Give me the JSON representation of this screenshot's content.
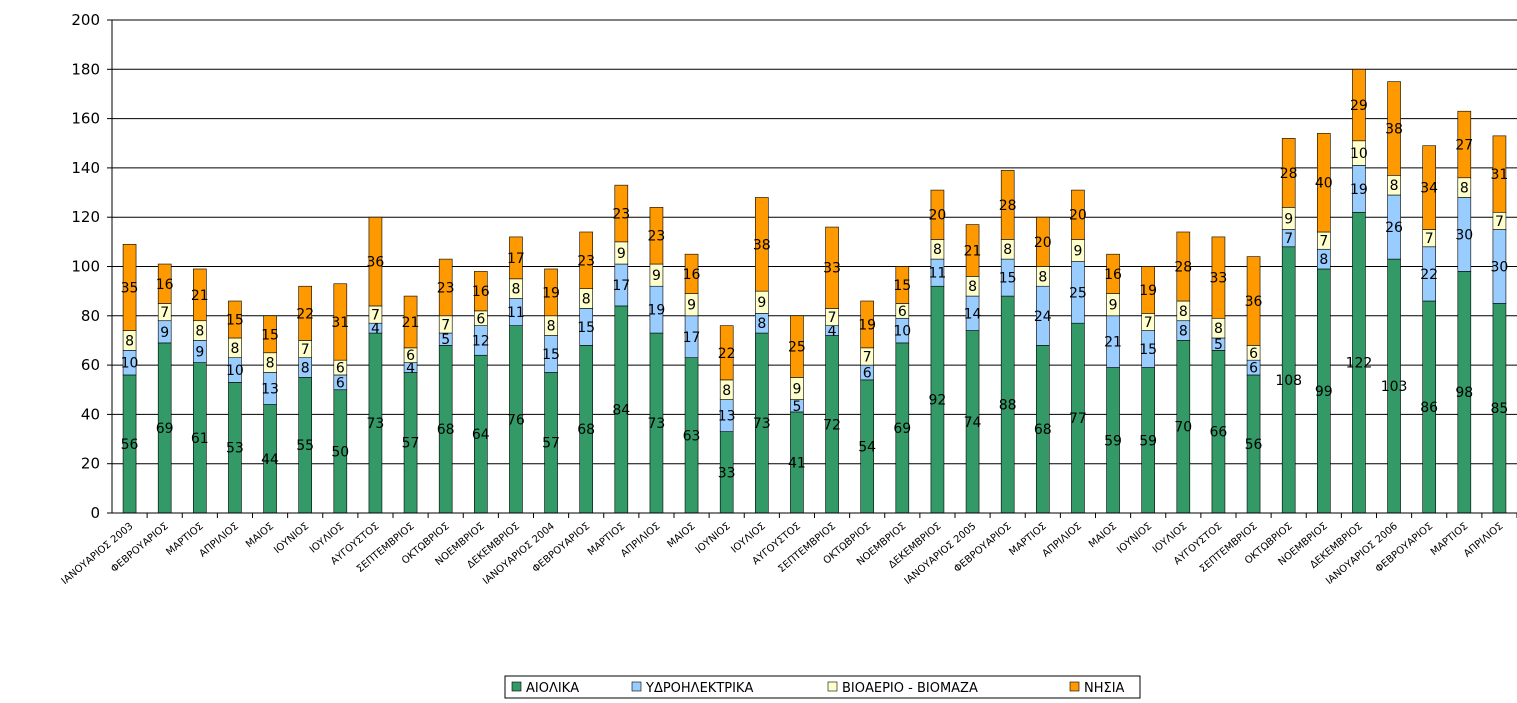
{
  "chart_data": {
    "type": "stacked_bar",
    "categories": [
      "ΙΑΝΟΥΑΡΙΟΣ 2003",
      "ΦΕΒΡΟΥΑΡΙΟΣ",
      "ΜΑΡΤΙΟΣ",
      "ΑΠΡΙΛΙΟΣ",
      "ΜΑΙΟΣ",
      "ΙΟΥΝΙΟΣ",
      "ΙΟΥΛΙΟΣ",
      "ΑΥΓΟΥΣΤΟΣ",
      "ΣΕΠΤΕΜΒΡΙΟΣ",
      "ΟΚΤΩΒΡΙΟΣ",
      "ΝΟΕΜΒΡΙΟΣ",
      "ΔΕΚΕΜΒΡΙΟΣ",
      "ΙΑΝΟΥΑΡΙΟΣ 2004",
      "ΦΕΒΡΟΥΑΡΙΟΣ",
      "ΜΑΡΤΙΟΣ",
      "ΑΠΡΙΛΙΟΣ",
      "ΜΑΙΟΣ",
      "ΙΟΥΝΙΟΣ",
      "ΙΟΥΛΙΟΣ",
      "ΑΥΓΟΥΣΤΟΣ",
      "ΣΕΠΤΕΜΒΡΙΟΣ",
      "ΟΚΤΩΒΡΙΟΣ",
      "ΝΟΕΜΒΡΙΟΣ",
      "ΔΕΚΕΜΒΡΙΟΣ",
      "ΙΑΝΟΥΑΡΙΟΣ 2005",
      "ΦΕΒΡΟΥΑΡΙΟΣ",
      "ΜΑΡΤΙΟΣ",
      "ΑΠΡΙΛΙΟΣ",
      "ΜΑΙΟΣ",
      "ΙΟΥΝΙΟΣ",
      "ΙΟΥΛΙΟΣ",
      "ΑΥΓΟΥΣΤΟΣ",
      "ΣΕΠΤΕΜΒΡΙΟΣ",
      "ΟΚΤΩΒΡΙΟΣ",
      "ΝΟΕΜΒΡΙΟΣ",
      "ΔΕΚΕΜΒΡΙΟΣ",
      "ΙΑΝΟΥΑΡΙΟΣ 2006",
      "ΦΕΒΡΟΥΑΡΙΟΣ",
      "ΜΑΡΤΙΟΣ",
      "ΑΠΡΙΛΙΟΣ"
    ],
    "series": [
      {
        "name": "ΑΙΟΛΙΚΑ",
        "color": "#339966",
        "values": [
          56,
          69,
          61,
          53,
          44,
          55,
          50,
          73,
          57,
          68,
          64,
          76,
          57,
          68,
          84,
          73,
          63,
          33,
          73,
          41,
          72,
          54,
          69,
          92,
          74,
          88,
          68,
          77,
          59,
          59,
          70,
          66,
          56,
          108,
          99,
          122,
          103,
          86,
          98,
          85
        ]
      },
      {
        "name": "ΥΔΡΟΗΛΕΚΤΡΙΚΑ",
        "color": "#99ccff",
        "values": [
          10,
          9,
          9,
          10,
          13,
          8,
          6,
          4,
          4,
          5,
          12,
          11,
          15,
          15,
          17,
          19,
          17,
          13,
          8,
          5,
          4,
          6,
          10,
          11,
          14,
          15,
          24,
          25,
          21,
          15,
          8,
          5,
          6,
          7,
          8,
          19,
          26,
          22,
          30,
          30
        ]
      },
      {
        "name": "ΒΙΟΑΕΡΙΟ - ΒΙΟΜΑΖΑ",
        "color": "#ffffcc",
        "values": [
          8,
          7,
          8,
          8,
          8,
          7,
          6,
          7,
          6,
          7,
          6,
          8,
          8,
          8,
          9,
          9,
          9,
          8,
          9,
          9,
          7,
          7,
          6,
          8,
          8,
          8,
          8,
          9,
          9,
          7,
          8,
          8,
          6,
          9,
          7,
          10,
          8,
          7,
          8,
          7
        ]
      },
      {
        "name": "ΝΗΣΙΑ",
        "color": "#ff9900",
        "values": [
          35,
          16,
          21,
          15,
          15,
          22,
          31,
          36,
          21,
          23,
          16,
          17,
          19,
          23,
          23,
          23,
          16,
          22,
          38,
          25,
          33,
          19,
          15,
          20,
          21,
          28,
          20,
          20,
          16,
          19,
          28,
          33,
          36,
          28,
          40,
          29,
          38,
          34,
          27,
          31
        ]
      }
    ],
    "ylim": [
      0,
      200
    ],
    "yticks": [
      0,
      20,
      40,
      60,
      80,
      100,
      120,
      140,
      160,
      180,
      200
    ],
    "grid": true
  }
}
